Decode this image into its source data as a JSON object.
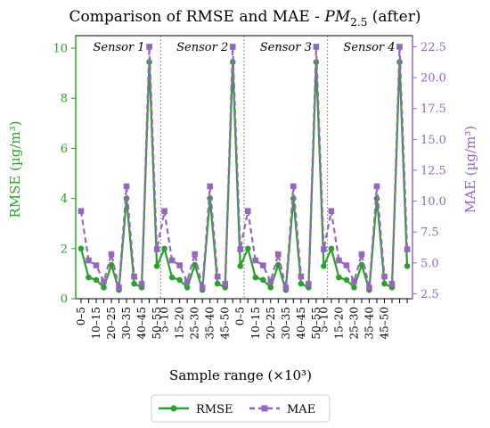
{
  "chart_data": {
    "type": "line",
    "title": "Comparison of RMSE and MAE - ",
    "title_var": "PM",
    "title_sub": "2.5",
    "title_suffix": " (after)",
    "xlabel": "Sample range (×10³)",
    "ylabel_left": "RMSE (µg/m³)",
    "ylabel_right": "MAE (µg/m³)",
    "ylim_left": [
      0,
      10.5
    ],
    "ylim_right": [
      2.1,
      23.4
    ],
    "yticks_left": [
      0,
      2,
      4,
      6,
      8,
      10
    ],
    "yticks_right": [
      2.5,
      5.0,
      7.5,
      10.0,
      12.5,
      15.0,
      17.5,
      20.0,
      22.5
    ],
    "categories": [
      "0–5",
      "5–10",
      "10–15",
      "15–20",
      "20–25",
      "25–30",
      "30–35",
      "35–40",
      "40–45",
      "45–50",
      "50–55"
    ],
    "xtick_labels": [
      "0–5",
      "",
      "10–15",
      "",
      "20–25",
      "",
      "30–35",
      "",
      "40–45",
      "",
      "50–55",
      "5–10",
      "",
      "15–20",
      "",
      "25–30",
      "",
      "35–40",
      "",
      "45–50",
      "",
      "0–5",
      "",
      "10–15",
      "",
      "20–25",
      "",
      "30–35",
      "",
      "40–45",
      "",
      "50–55",
      "5–10",
      "",
      "15–20",
      "",
      "25–30",
      "",
      "35–40",
      "",
      "45–50",
      ""
    ],
    "groups": [
      "Sensor 1",
      "Sensor 2",
      "Sensor 3",
      "Sensor 4"
    ],
    "series": [
      {
        "name": "RMSE",
        "axis": "left",
        "color": "#2ca02c",
        "style": "solid",
        "marker": "circle",
        "values": [
          [
            2.0,
            0.85,
            0.75,
            0.45,
            1.35,
            0.35,
            4.0,
            0.6,
            0.45,
            9.45,
            1.3
          ],
          [
            2.0,
            0.85,
            0.75,
            0.45,
            1.35,
            0.35,
            4.0,
            0.6,
            0.45,
            9.45,
            1.3
          ],
          [
            2.0,
            0.85,
            0.75,
            0.45,
            1.35,
            0.35,
            4.0,
            0.6,
            0.45,
            9.45,
            1.3
          ],
          [
            2.0,
            0.85,
            0.75,
            0.45,
            1.35,
            0.35,
            4.0,
            0.6,
            0.45,
            9.45,
            1.3
          ]
        ]
      },
      {
        "name": "MAE",
        "axis": "right",
        "color": "#9467bd",
        "style": "dashed",
        "marker": "square",
        "values": [
          [
            9.2,
            5.2,
            4.8,
            3.5,
            5.7,
            3.0,
            11.2,
            3.9,
            3.3,
            22.5,
            6.1
          ],
          [
            9.2,
            5.2,
            4.8,
            3.5,
            5.7,
            3.0,
            11.2,
            3.9,
            3.3,
            22.5,
            6.1
          ],
          [
            9.2,
            5.2,
            4.8,
            3.5,
            5.7,
            3.0,
            11.2,
            3.9,
            3.3,
            22.5,
            6.1
          ],
          [
            9.2,
            5.2,
            4.8,
            3.5,
            5.7,
            3.0,
            11.2,
            3.9,
            3.3,
            22.5,
            6.1
          ]
        ]
      }
    ],
    "group_separators": "dotted",
    "legend_position": "bottom-center",
    "grid": false
  }
}
